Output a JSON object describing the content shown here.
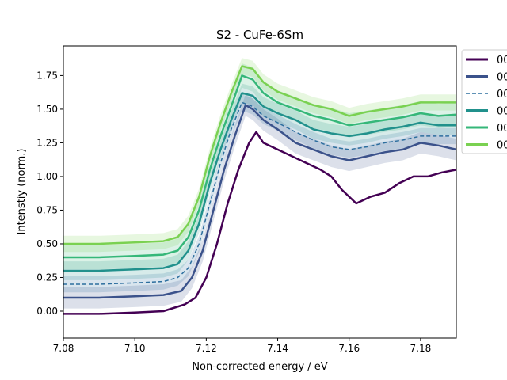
{
  "chart_data": {
    "type": "line",
    "title": "S2 - CuFe-6Sm",
    "xlabel": "Non-corrected energy / eV",
    "ylabel": "Intenstiy (norm.)",
    "xlim": [
      7.08,
      7.19
    ],
    "ylim": [
      -0.2,
      1.97
    ],
    "xticks": [
      "7.08",
      "7.10",
      "7.12",
      "7.14",
      "7.16",
      "7.18"
    ],
    "yticks": [
      "0.00",
      "0.25",
      "0.50",
      "0.75",
      "1.00",
      "1.25",
      "1.50",
      "1.75"
    ],
    "grid": false,
    "legend_position": "outside-right",
    "series": [
      {
        "name": "00",
        "color": "#440154",
        "style": "solid",
        "offset": 0.0,
        "band": 0.0,
        "points": [
          [
            7.08,
            -0.02
          ],
          [
            7.09,
            -0.02
          ],
          [
            7.1,
            -0.01
          ],
          [
            7.108,
            0.0
          ],
          [
            7.114,
            0.05
          ],
          [
            7.117,
            0.1
          ],
          [
            7.12,
            0.25
          ],
          [
            7.123,
            0.5
          ],
          [
            7.126,
            0.8
          ],
          [
            7.129,
            1.05
          ],
          [
            7.132,
            1.25
          ],
          [
            7.134,
            1.33
          ],
          [
            7.136,
            1.25
          ],
          [
            7.14,
            1.2
          ],
          [
            7.144,
            1.15
          ],
          [
            7.148,
            1.1
          ],
          [
            7.152,
            1.05
          ],
          [
            7.155,
            1.0
          ],
          [
            7.158,
            0.9
          ],
          [
            7.162,
            0.8
          ],
          [
            7.166,
            0.85
          ],
          [
            7.17,
            0.88
          ],
          [
            7.174,
            0.95
          ],
          [
            7.178,
            1.0
          ],
          [
            7.182,
            1.0
          ],
          [
            7.186,
            1.03
          ],
          [
            7.19,
            1.05
          ]
        ]
      },
      {
        "name": "00",
        "color": "#3b528b",
        "style": "solid",
        "offset": 0.0,
        "band": 0.08,
        "points": [
          [
            7.08,
            0.1
          ],
          [
            7.09,
            0.1
          ],
          [
            7.1,
            0.11
          ],
          [
            7.108,
            0.12
          ],
          [
            7.113,
            0.15
          ],
          [
            7.116,
            0.25
          ],
          [
            7.119,
            0.45
          ],
          [
            7.122,
            0.75
          ],
          [
            7.125,
            1.05
          ],
          [
            7.128,
            1.3
          ],
          [
            7.131,
            1.53
          ],
          [
            7.133,
            1.5
          ],
          [
            7.136,
            1.42
          ],
          [
            7.14,
            1.35
          ],
          [
            7.145,
            1.25
          ],
          [
            7.15,
            1.2
          ],
          [
            7.155,
            1.15
          ],
          [
            7.16,
            1.12
          ],
          [
            7.165,
            1.15
          ],
          [
            7.17,
            1.18
          ],
          [
            7.175,
            1.2
          ],
          [
            7.18,
            1.25
          ],
          [
            7.185,
            1.23
          ],
          [
            7.19,
            1.2
          ]
        ]
      },
      {
        "name": "00",
        "color": "#2c6e9e",
        "style": "dashed",
        "offset": 0.0,
        "band": 0.06,
        "points": [
          [
            7.08,
            0.2
          ],
          [
            7.09,
            0.2
          ],
          [
            7.1,
            0.21
          ],
          [
            7.108,
            0.22
          ],
          [
            7.112,
            0.25
          ],
          [
            7.115,
            0.32
          ],
          [
            7.118,
            0.5
          ],
          [
            7.121,
            0.8
          ],
          [
            7.124,
            1.1
          ],
          [
            7.127,
            1.35
          ],
          [
            7.13,
            1.55
          ],
          [
            7.133,
            1.52
          ],
          [
            7.136,
            1.45
          ],
          [
            7.14,
            1.4
          ],
          [
            7.145,
            1.33
          ],
          [
            7.15,
            1.27
          ],
          [
            7.155,
            1.22
          ],
          [
            7.16,
            1.2
          ],
          [
            7.165,
            1.22
          ],
          [
            7.17,
            1.25
          ],
          [
            7.175,
            1.27
          ],
          [
            7.18,
            1.3
          ],
          [
            7.185,
            1.3
          ],
          [
            7.19,
            1.3
          ]
        ]
      },
      {
        "name": "00",
        "color": "#21918c",
        "style": "solid",
        "offset": 0.0,
        "band": 0.07,
        "points": [
          [
            7.08,
            0.3
          ],
          [
            7.09,
            0.3
          ],
          [
            7.1,
            0.31
          ],
          [
            7.108,
            0.32
          ],
          [
            7.112,
            0.35
          ],
          [
            7.115,
            0.45
          ],
          [
            7.118,
            0.65
          ],
          [
            7.121,
            0.95
          ],
          [
            7.124,
            1.2
          ],
          [
            7.127,
            1.42
          ],
          [
            7.13,
            1.62
          ],
          [
            7.133,
            1.6
          ],
          [
            7.136,
            1.52
          ],
          [
            7.14,
            1.47
          ],
          [
            7.145,
            1.42
          ],
          [
            7.15,
            1.35
          ],
          [
            7.155,
            1.32
          ],
          [
            7.16,
            1.3
          ],
          [
            7.165,
            1.32
          ],
          [
            7.17,
            1.35
          ],
          [
            7.175,
            1.37
          ],
          [
            7.18,
            1.4
          ],
          [
            7.185,
            1.38
          ],
          [
            7.19,
            1.38
          ]
        ]
      },
      {
        "name": "00",
        "color": "#35b779",
        "style": "solid",
        "offset": 0.0,
        "band": 0.09,
        "points": [
          [
            7.08,
            0.4
          ],
          [
            7.09,
            0.4
          ],
          [
            7.1,
            0.41
          ],
          [
            7.108,
            0.42
          ],
          [
            7.112,
            0.45
          ],
          [
            7.115,
            0.55
          ],
          [
            7.118,
            0.75
          ],
          [
            7.121,
            1.05
          ],
          [
            7.124,
            1.3
          ],
          [
            7.127,
            1.52
          ],
          [
            7.13,
            1.75
          ],
          [
            7.133,
            1.72
          ],
          [
            7.136,
            1.62
          ],
          [
            7.14,
            1.55
          ],
          [
            7.145,
            1.5
          ],
          [
            7.15,
            1.45
          ],
          [
            7.155,
            1.42
          ],
          [
            7.16,
            1.38
          ],
          [
            7.165,
            1.4
          ],
          [
            7.17,
            1.42
          ],
          [
            7.175,
            1.44
          ],
          [
            7.18,
            1.47
          ],
          [
            7.185,
            1.45
          ],
          [
            7.19,
            1.46
          ]
        ]
      },
      {
        "name": "00",
        "color": "#7ad151",
        "style": "solid",
        "offset": 0.0,
        "band": 0.06,
        "points": [
          [
            7.08,
            0.5
          ],
          [
            7.09,
            0.5
          ],
          [
            7.1,
            0.51
          ],
          [
            7.108,
            0.52
          ],
          [
            7.112,
            0.55
          ],
          [
            7.115,
            0.65
          ],
          [
            7.118,
            0.85
          ],
          [
            7.121,
            1.15
          ],
          [
            7.124,
            1.4
          ],
          [
            7.127,
            1.62
          ],
          [
            7.13,
            1.82
          ],
          [
            7.133,
            1.8
          ],
          [
            7.136,
            1.7
          ],
          [
            7.14,
            1.63
          ],
          [
            7.145,
            1.58
          ],
          [
            7.15,
            1.53
          ],
          [
            7.155,
            1.5
          ],
          [
            7.16,
            1.45
          ],
          [
            7.165,
            1.48
          ],
          [
            7.17,
            1.5
          ],
          [
            7.175,
            1.52
          ],
          [
            7.18,
            1.55
          ],
          [
            7.185,
            1.55
          ],
          [
            7.19,
            1.55
          ]
        ]
      }
    ]
  }
}
